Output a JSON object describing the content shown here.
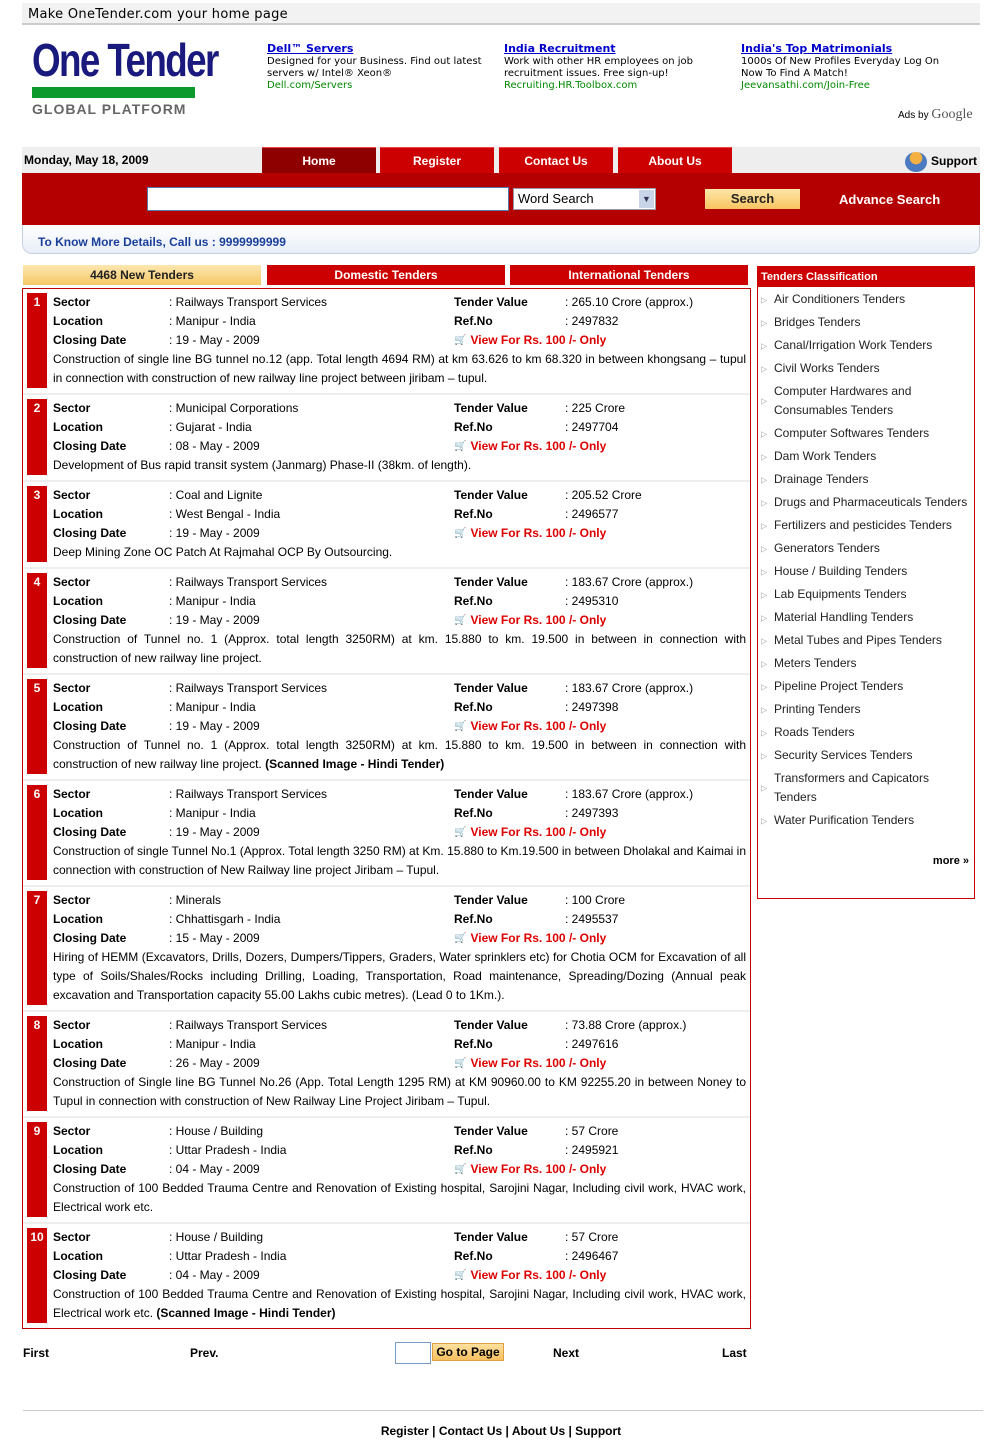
{
  "top_bar": "Make OneTender.com your home page",
  "logo": {
    "name": "One Tender",
    "tagline": "GLOBAL PLATFORM"
  },
  "ads": [
    {
      "title": "Dell™ Servers",
      "text": "Designed for your Business. Find out latest servers w/ Intel® Xeon®",
      "url": "Dell.com/Servers"
    },
    {
      "title": "India Recruitment",
      "text": "Work with other HR employees on job recruitment issues. Free sign-up!",
      "url": "Recruiting.HR.Toolbox.com"
    },
    {
      "title": "India's Top Matrimonials",
      "text": "1000s Of New Profiles Everyday Log On Now To Find A Match!",
      "url": "Jeevansathi.com/Join-Free"
    }
  ],
  "ads_by": "Ads by",
  "ads_brand": "Google",
  "nav": {
    "date": "Monday, May 18, 2009",
    "tabs": [
      "Home",
      "Register",
      "Contact Us",
      "About Us"
    ],
    "support": "Support"
  },
  "search": {
    "value": "",
    "select": "Word Search",
    "button": "Search",
    "advance": "Advance Search"
  },
  "call_bar": "To Know More Details, Call us : 9999999999",
  "tender_tabs": [
    "4468 New Tenders",
    "Domestic Tenders",
    "International Tenders"
  ],
  "labels": {
    "sector": "Sector",
    "location": "Location",
    "closing": "Closing Date",
    "value": "Tender Value",
    "ref": "Ref.No",
    "view": "View For Rs. 100 /- Only"
  },
  "tenders": [
    {
      "n": "1",
      "sector": "Railways Transport Services",
      "location": "Manipur - India",
      "closing": "19 - May - 2009",
      "value": "265.10 Crore (approx.)",
      "ref": "2497832",
      "desc": "Construction of single line BG tunnel no.12 (app. Total length 4694 RM) at km 63.626 to km 68.320 in between khongsang – tupul in connection with construction of new railway line project between jiribam – tupul.",
      "note": ""
    },
    {
      "n": "2",
      "sector": "Municipal Corporations",
      "location": "Gujarat - India",
      "closing": "08 - May - 2009",
      "value": "225 Crore",
      "ref": "2497704",
      "desc": "Development of Bus rapid transit system (Janmarg) Phase-II (38km. of length).",
      "note": ""
    },
    {
      "n": "3",
      "sector": "Coal and Lignite",
      "location": "West Bengal - India",
      "closing": "19 - May - 2009",
      "value": "205.52 Crore",
      "ref": "2496577",
      "desc": "Deep Mining Zone OC Patch At Rajmahal OCP By Outsourcing.",
      "note": ""
    },
    {
      "n": "4",
      "sector": "Railways Transport Services",
      "location": "Manipur - India",
      "closing": "19 - May - 2009",
      "value": "183.67 Crore (approx.)",
      "ref": "2495310",
      "desc": "Construction of Tunnel no. 1 (Approx. total length 3250RM) at km. 15.880 to km. 19.500 in between in connection with construction of new railway line project.",
      "note": ""
    },
    {
      "n": "5",
      "sector": "Railways Transport Services",
      "location": "Manipur - India",
      "closing": "19 - May - 2009",
      "value": "183.67 Crore (approx.)",
      "ref": "2497398",
      "desc": "Construction of Tunnel no. 1 (Approx. total length 3250RM) at km. 15.880 to km. 19.500 in between in connection with construction of new railway line project.",
      "note": "(Scanned Image - Hindi Tender)"
    },
    {
      "n": "6",
      "sector": "Railways Transport Services",
      "location": "Manipur - India",
      "closing": "19 - May - 2009",
      "value": "183.67 Crore (approx.)",
      "ref": "2497393",
      "desc": "Construction of single Tunnel No.1 (Approx. Total length 3250 RM) at Km. 15.880 to Km.19.500 in between Dholakal and Kaimai in connection with construction of New Railway line project Jiribam – Tupul.",
      "note": ""
    },
    {
      "n": "7",
      "sector": "Minerals",
      "location": "Chhattisgarh - India",
      "closing": "15 - May - 2009",
      "value": "100 Crore",
      "ref": "2495537",
      "desc": "Hiring of HEMM (Excavators, Drills, Dozers, Dumpers/Tippers, Graders, Water sprinklers etc) for Chotia OCM for Excavation of all type of Soils/Shales/Rocks including Drilling, Loading, Transportation, Road maintenance, Spreading/Dozing (Annual peak excavation and Transportation capacity 55.00 Lakhs cubic metres). (Lead 0 to 1Km.).",
      "note": ""
    },
    {
      "n": "8",
      "sector": "Railways Transport Services",
      "location": "Manipur - India",
      "closing": "26 - May - 2009",
      "value": "73.88 Crore (approx.)",
      "ref": "2497616",
      "desc": "Construction of Single line BG Tunnel No.26 (App. Total Length 1295 RM) at KM 90960.00 to KM 92255.20 in between Noney to Tupul in connection with construction of New Railway Line Project Jiribam – Tupul.",
      "note": ""
    },
    {
      "n": "9",
      "sector": "House / Building",
      "location": "Uttar Pradesh - India",
      "closing": "04 - May - 2009",
      "value": "57 Crore",
      "ref": "2495921",
      "desc": "Construction of 100 Bedded Trauma Centre and Renovation of Existing hospital, Sarojini Nagar, Including civil work, HVAC work, Electrical work etc.",
      "note": ""
    },
    {
      "n": "10",
      "sector": "House / Building",
      "location": "Uttar Pradesh - India",
      "closing": "04 - May - 2009",
      "value": "57 Crore",
      "ref": "2496467",
      "desc": "Construction of 100 Bedded Trauma Centre and Renovation of Existing hospital, Sarojini Nagar, Including civil work, HVAC work, Electrical work etc.",
      "note": "(Scanned Image - Hindi Tender)"
    }
  ],
  "classification": {
    "title": "Tenders Classification",
    "items": [
      "Air Conditioners Tenders",
      "Bridges Tenders",
      "Canal/Irrigation Work Tenders",
      "Civil Works Tenders",
      "Computer Hardwares and Consumables Tenders",
      "Computer Softwares Tenders",
      "Dam Work Tenders",
      "Drainage Tenders",
      "Drugs and Pharmaceuticals Tenders",
      "Fertilizers and pesticides Tenders",
      "Generators Tenders",
      "House / Building Tenders",
      "Lab Equipments Tenders",
      "Material Handling Tenders",
      "Metal Tubes and Pipes Tenders",
      "Meters Tenders",
      "Pipeline Project Tenders",
      "Printing Tenders",
      "Roads Tenders",
      "Security Services Tenders",
      "Transformers and Capicators Tenders",
      "Water Purification Tenders"
    ],
    "more": "more »"
  },
  "pagination": {
    "first": "First",
    "prev": "Prev.",
    "page_value": "",
    "go": "Go to Page",
    "next": "Next",
    "last": "Last"
  },
  "footer": {
    "links": [
      "Register",
      "Contact Us",
      "About Us",
      "Support"
    ],
    "sep": " | "
  }
}
